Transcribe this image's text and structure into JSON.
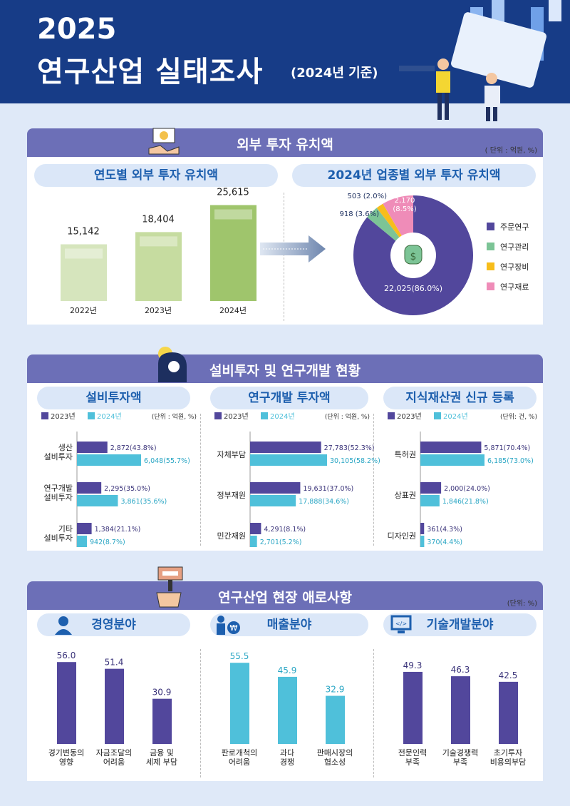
{
  "header": {
    "year": "2025",
    "title": "연구산업 실태조사",
    "basis": "(2024년 기준)"
  },
  "colors": {
    "navy": "#173c87",
    "purple": "#52479c",
    "cyan": "#4fc0da",
    "green": "#7cc496",
    "yellow": "#f7bd1b",
    "pink": "#ef8cb8"
  },
  "sections": [
    {
      "title": "외부 투자 유치액",
      "unit": "( 단위 : 억원, %)",
      "subtitles": [
        "연도별 외부 투자 유치액",
        "2024년 업종별 외부 투자 유치액"
      ],
      "icon": "handshake-icon"
    },
    {
      "title": "설비투자 및 연구개발 현황",
      "subtitles": [
        "설비투자액",
        "연구개발 투자액",
        "지식재산권 신규 등록"
      ],
      "icon": "lightbulb-head-icon"
    },
    {
      "title": "연구산업 현장 애로사항",
      "unit": "(단위: %)",
      "subtitles": [
        "경영분야",
        "매출분야",
        "기술개발분야"
      ],
      "icon": "gavel-icon"
    }
  ],
  "chart_data": [
    {
      "type": "bar",
      "categories": [
        "2022년",
        "2023년",
        "2024년"
      ],
      "values": [
        15142,
        18404,
        25615
      ],
      "labels": [
        "15,142",
        "18,404",
        "25,615"
      ],
      "colors": [
        "#d6e5bd",
        "#c6dca0",
        "#9fc56c"
      ]
    },
    {
      "type": "pie",
      "donut": true,
      "slices": [
        {
          "name": "주문연구",
          "value": 22025,
          "pct": 86.0,
          "label": "22,025(86.0%)",
          "color": "#52479c"
        },
        {
          "name": "연구관리",
          "value": 918,
          "pct": 3.6,
          "label": "918 (3.6%)",
          "color": "#7cc496"
        },
        {
          "name": "연구장비",
          "value": 503,
          "pct": 2.0,
          "label": "503 (2.0%)",
          "color": "#f7bd1b"
        },
        {
          "name": "연구재료",
          "value": 2170,
          "pct": 8.5,
          "label": "2,170 (8.5%)",
          "color": "#ef8cb8"
        }
      ],
      "legend": "right"
    },
    {
      "type": "bar",
      "orientation": "horizontal",
      "unit": "(단위 : 억원, %)",
      "categories": [
        "생산\n설비투자",
        "연구개발\n설비투자",
        "기타\n설비투자"
      ],
      "series": [
        {
          "name": "2023년",
          "values": [
            2872,
            2295,
            1384
          ],
          "labels": [
            "2,872(43.8%)",
            "2,295(35.0%)",
            "1,384(21.1%)"
          ]
        },
        {
          "name": "2024년",
          "values": [
            6048,
            3861,
            942
          ],
          "labels": [
            "6,048(55.7%)",
            "3,861(35.6%)",
            "942(8.7%)"
          ]
        }
      ]
    },
    {
      "type": "bar",
      "orientation": "horizontal",
      "unit": "(단위 : 억원, %)",
      "categories": [
        "자체부담",
        "정부재원",
        "민간재원"
      ],
      "series": [
        {
          "name": "2023년",
          "values": [
            27783,
            19631,
            4291
          ],
          "labels": [
            "27,783(52.3%)",
            "19,631(37.0%)",
            "4,291(8.1%)"
          ]
        },
        {
          "name": "2024년",
          "values": [
            30105,
            17888,
            2701
          ],
          "labels": [
            "30,105(58.2%)",
            "17,888(34.6%)",
            "2,701(5.2%)"
          ]
        }
      ]
    },
    {
      "type": "bar",
      "orientation": "horizontal",
      "unit": "(단위: 건, %)",
      "categories": [
        "특허권",
        "상표권",
        "디자인권"
      ],
      "series": [
        {
          "name": "2023년",
          "values": [
            5871,
            2000,
            361
          ],
          "labels": [
            "5,871(70.4%)",
            "2,000(24.0%)",
            "361(4.3%)"
          ]
        },
        {
          "name": "2024년",
          "values": [
            6185,
            1846,
            370
          ],
          "labels": [
            "6,185(73.0%)",
            "1,846(21.8%)",
            "370(4.4%)"
          ]
        }
      ]
    },
    {
      "type": "bar",
      "categories": [
        "경기변동의\n영향",
        "자금조달의\n어려움",
        "금융 및\n세제 부담"
      ],
      "values": [
        56.0,
        51.4,
        30.9
      ],
      "color": "#52479c"
    },
    {
      "type": "bar",
      "categories": [
        "판로개척의\n어려움",
        "과다\n경쟁",
        "판매시장의\n협소성"
      ],
      "values": [
        55.5,
        45.9,
        32.9
      ],
      "color": "#4fc0da"
    },
    {
      "type": "bar",
      "categories": [
        "전문인력\n부족",
        "기술경쟁력\n부족",
        "초기투자\n비용의부담"
      ],
      "values": [
        49.3,
        46.3,
        42.5
      ],
      "color": "#52479c"
    }
  ]
}
